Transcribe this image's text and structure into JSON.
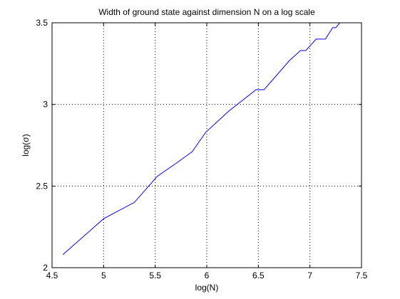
{
  "chart_data": {
    "type": "line",
    "title": "Width of ground state against dimension N on a log scale",
    "xlabel": "log(N)",
    "ylabel": "log(σ)",
    "xlim": [
      4.5,
      7.5
    ],
    "ylim": [
      2,
      3.5
    ],
    "xticks": [
      4.5,
      5,
      5.5,
      6,
      6.5,
      7,
      7.5
    ],
    "yticks": [
      2,
      2.5,
      3,
      3.5
    ],
    "xtick_labels": [
      "4.5",
      "5",
      "5.5",
      "6",
      "6.5",
      "7",
      "7.5"
    ],
    "ytick_labels": [
      "2",
      "2.5",
      "3",
      "3.5"
    ],
    "grid": true,
    "line_color": "#0000ff",
    "series": [
      {
        "x": [
          4.605,
          5.0,
          5.298,
          5.521,
          5.704,
          5.858,
          5.991,
          6.215,
          6.477,
          6.48,
          6.555,
          6.803,
          6.909,
          6.96,
          7.06,
          7.15,
          7.22,
          7.25,
          7.29
        ],
        "y": [
          2.08,
          2.3,
          2.4,
          2.56,
          2.64,
          2.71,
          2.83,
          2.96,
          3.09,
          3.09,
          3.09,
          3.27,
          3.33,
          3.33,
          3.4,
          3.4,
          3.47,
          3.47,
          3.5
        ]
      }
    ]
  }
}
